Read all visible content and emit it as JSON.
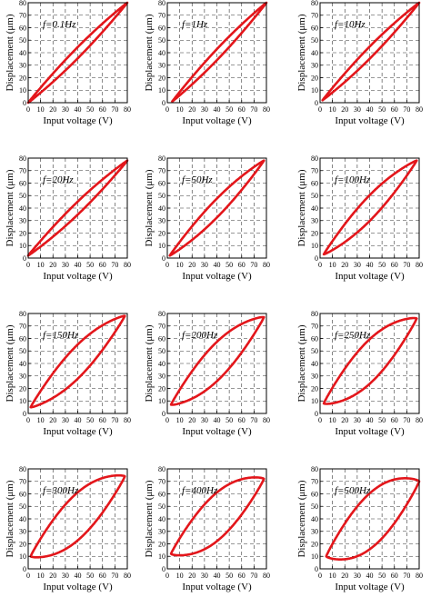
{
  "chart_data": [
    {
      "type": "line",
      "label": "f=0.1Hz",
      "xlabel": "Input voltage (V)",
      "ylabel": "Displacement (μm)",
      "xlim": [
        0,
        80
      ],
      "ylim": [
        0,
        80
      ],
      "xticks": [
        "0",
        "10",
        "20",
        "30",
        "40",
        "50",
        "60",
        "70",
        "80"
      ],
      "yticks": [
        "0",
        "10",
        "20",
        "30",
        "40",
        "50",
        "60",
        "70",
        "80"
      ],
      "grid": true,
      "loop": {
        "v_min": 0,
        "v_max": 80,
        "d_min": 0,
        "d_max": 80,
        "max_gap": 9
      }
    },
    {
      "type": "line",
      "label": "f=1Hz",
      "xlabel": "Input voltage (V)",
      "ylabel": "Displacement (μm)",
      "xlim": [
        0,
        80
      ],
      "ylim": [
        0,
        80
      ],
      "xticks": [
        "0",
        "10",
        "20",
        "30",
        "40",
        "50",
        "60",
        "70",
        "80"
      ],
      "yticks": [
        "0",
        "10",
        "20",
        "30",
        "40",
        "50",
        "60",
        "70",
        "80"
      ],
      "grid": true,
      "loop": {
        "v_min": 4,
        "v_max": 80,
        "d_min": 1,
        "d_max": 80,
        "max_gap": 9
      }
    },
    {
      "type": "line",
      "label": "f=10Hz",
      "xlabel": "Input voltage (V)",
      "ylabel": "Displacement (μm)",
      "xlim": [
        0,
        80
      ],
      "ylim": [
        0,
        80
      ],
      "xticks": [
        "0",
        "10",
        "20",
        "30",
        "40",
        "50",
        "60",
        "70",
        "80"
      ],
      "yticks": [
        "0",
        "10",
        "20",
        "30",
        "40",
        "50",
        "60",
        "70",
        "80"
      ],
      "grid": true,
      "loop": {
        "v_min": 2,
        "v_max": 80,
        "d_min": 2,
        "d_max": 80,
        "max_gap": 10
      }
    },
    {
      "type": "line",
      "label": "f=20Hz",
      "xlabel": "Input voltage (V)",
      "ylabel": "Displacement (μm)",
      "xlim": [
        0,
        80
      ],
      "ylim": [
        0,
        80
      ],
      "xticks": [
        "0",
        "10",
        "20",
        "30",
        "40",
        "50",
        "60",
        "70",
        "80"
      ],
      "yticks": [
        "0",
        "10",
        "20",
        "30",
        "40",
        "50",
        "60",
        "70",
        "80"
      ],
      "grid": true,
      "loop": {
        "v_min": 0,
        "v_max": 80,
        "d_min": 2,
        "d_max": 78,
        "max_gap": 11
      }
    },
    {
      "type": "line",
      "label": "f=50Hz",
      "xlabel": "Input voltage (V)",
      "ylabel": "Displacement (μm)",
      "xlim": [
        0,
        80
      ],
      "ylim": [
        0,
        80
      ],
      "xticks": [
        "0",
        "10",
        "20",
        "30",
        "40",
        "50",
        "60",
        "70",
        "80"
      ],
      "yticks": [
        "0",
        "10",
        "20",
        "30",
        "40",
        "50",
        "60",
        "70",
        "80"
      ],
      "grid": true,
      "loop": {
        "v_min": 2,
        "v_max": 78,
        "d_min": 2,
        "d_max": 78,
        "max_gap": 16
      }
    },
    {
      "type": "line",
      "label": "f=100Hz",
      "xlabel": "Input voltage (V)",
      "ylabel": "Displacement (μm)",
      "xlim": [
        0,
        80
      ],
      "ylim": [
        0,
        80
      ],
      "xticks": [
        "0",
        "10",
        "20",
        "30",
        "40",
        "50",
        "60",
        "70",
        "80"
      ],
      "yticks": [
        "0",
        "10",
        "20",
        "30",
        "40",
        "50",
        "60",
        "70",
        "80"
      ],
      "grid": true,
      "loop": {
        "v_min": 3,
        "v_max": 78,
        "d_min": 3,
        "d_max": 78,
        "max_gap": 22
      }
    },
    {
      "type": "line",
      "label": "f=150Hz",
      "xlabel": "Input voltage (V)",
      "ylabel": "Displacement (μm)",
      "xlim": [
        0,
        80
      ],
      "ylim": [
        0,
        80
      ],
      "xticks": [
        "0",
        "10",
        "20",
        "30",
        "40",
        "50",
        "60",
        "70",
        "80"
      ],
      "yticks": [
        "0",
        "10",
        "20",
        "30",
        "40",
        "50",
        "60",
        "70",
        "80"
      ],
      "grid": true,
      "loop": {
        "v_min": 2,
        "v_max": 78,
        "d_min": 5,
        "d_max": 78,
        "max_gap": 30
      }
    },
    {
      "type": "line",
      "label": "f=200Hz",
      "xlabel": "Input voltage (V)",
      "ylabel": "Displacement (μm)",
      "xlim": [
        0,
        80
      ],
      "ylim": [
        0,
        80
      ],
      "xticks": [
        "0",
        "10",
        "20",
        "30",
        "40",
        "50",
        "60",
        "70",
        "80"
      ],
      "yticks": [
        "0",
        "10",
        "20",
        "30",
        "40",
        "50",
        "60",
        "70",
        "80"
      ],
      "grid": true,
      "loop": {
        "v_min": 3,
        "v_max": 78,
        "d_min": 7,
        "d_max": 77,
        "max_gap": 36
      }
    },
    {
      "type": "line",
      "label": "f=250Hz",
      "xlabel": "Input voltage (V)",
      "ylabel": "Displacement (μm)",
      "xlim": [
        0,
        80
      ],
      "ylim": [
        0,
        80
      ],
      "xticks": [
        "0",
        "10",
        "20",
        "30",
        "40",
        "50",
        "60",
        "70",
        "80"
      ],
      "yticks": [
        "0",
        "10",
        "20",
        "30",
        "40",
        "50",
        "60",
        "70",
        "80"
      ],
      "grid": true,
      "loop": {
        "v_min": 3,
        "v_max": 78,
        "d_min": 8,
        "d_max": 76,
        "max_gap": 42
      }
    },
    {
      "type": "line",
      "label": "f=300Hz",
      "xlabel": "Input voltage (V)",
      "ylabel": "Displacement (μm)",
      "xlim": [
        0,
        80
      ],
      "ylim": [
        0,
        80
      ],
      "xticks": [
        "0",
        "10",
        "20",
        "30",
        "40",
        "50",
        "60",
        "70",
        "80"
      ],
      "yticks": [
        "0",
        "10",
        "20",
        "30",
        "40",
        "50",
        "60",
        "70",
        "80"
      ],
      "grid": true,
      "loop": {
        "v_min": 2,
        "v_max": 78,
        "d_min": 10,
        "d_max": 74,
        "max_gap": 48
      }
    },
    {
      "type": "line",
      "label": "f=400Hz",
      "xlabel": "Input voltage (V)",
      "ylabel": "Displacement (μm)",
      "xlim": [
        0,
        80
      ],
      "ylim": [
        0,
        80
      ],
      "xticks": [
        "0",
        "10",
        "20",
        "30",
        "40",
        "50",
        "60",
        "70",
        "80"
      ],
      "yticks": [
        "0",
        "10",
        "20",
        "30",
        "40",
        "50",
        "60",
        "70",
        "80"
      ],
      "grid": true,
      "loop": {
        "v_min": 3,
        "v_max": 78,
        "d_min": 12,
        "d_max": 72,
        "max_gap": 52
      }
    },
    {
      "type": "line",
      "label": "f=500Hz",
      "xlabel": "Input voltage (V)",
      "ylabel": "Displacement (μm)",
      "xlim": [
        0,
        80
      ],
      "ylim": [
        0,
        80
      ],
      "xticks": [
        "0",
        "10",
        "20",
        "30",
        "40",
        "50",
        "60",
        "70",
        "80"
      ],
      "yticks": [
        "0",
        "10",
        "20",
        "30",
        "40",
        "50",
        "60",
        "70",
        "80"
      ],
      "grid": true,
      "loop": {
        "v_min": 5,
        "v_max": 80,
        "d_min": 10,
        "d_max": 70,
        "max_gap": 60
      }
    }
  ],
  "style": {
    "loop_color": "#e3161b",
    "axis_color": "#000000",
    "grid_color": "#333333",
    "background": "#ffffff"
  }
}
